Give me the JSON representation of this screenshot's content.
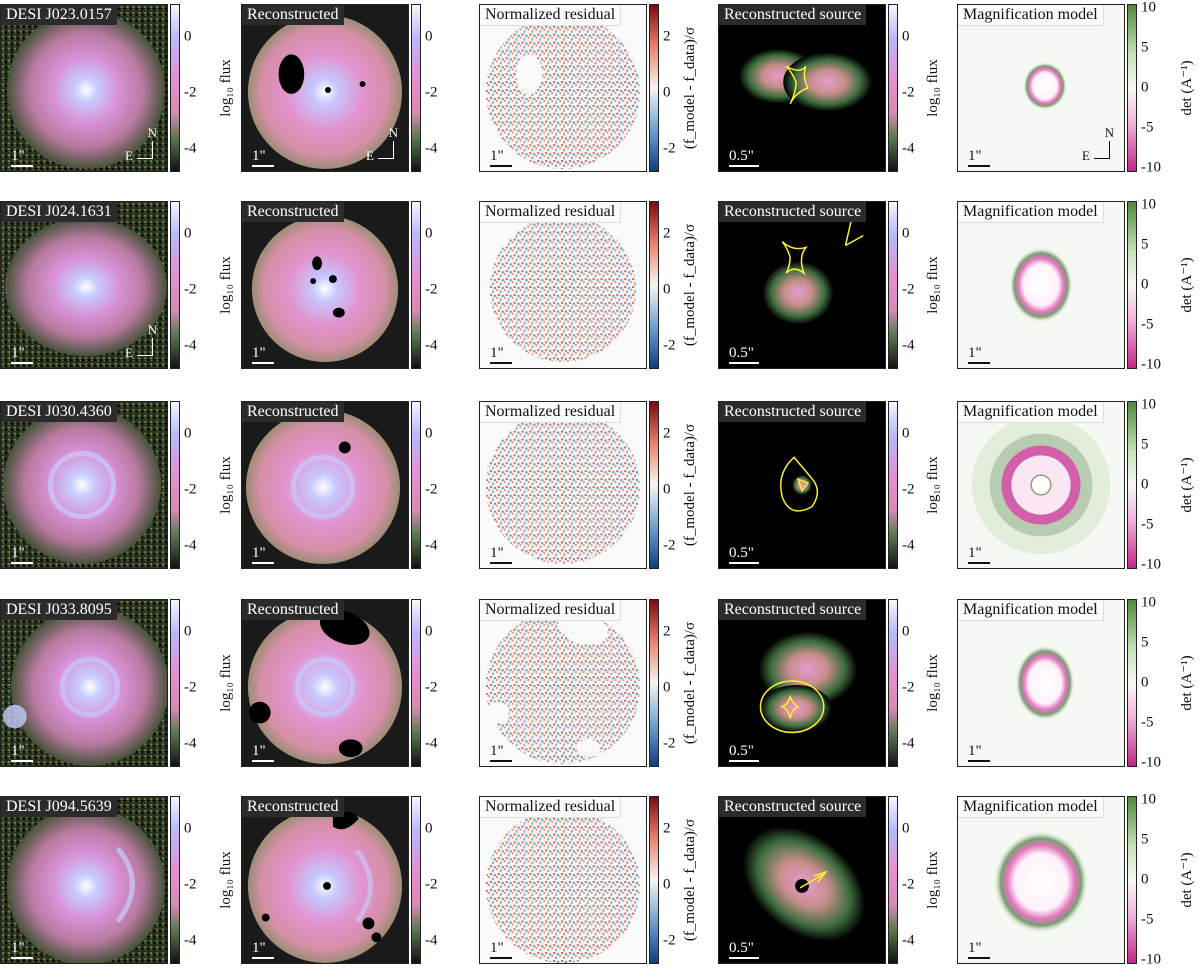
{
  "column_titles": {
    "reconstructed": "Reconstructed",
    "residual": "Normalized residual",
    "source": "Reconstructed source",
    "magnification": "Magnification model"
  },
  "colorbar_labels": {
    "flux": "log₁₀ flux",
    "residual": "(f_model - f_data)/σ",
    "det": "det (A⁻¹)"
  },
  "colorbar_ticks": {
    "flux": [
      "0",
      "-2",
      "-4"
    ],
    "residual": [
      "2",
      "0",
      "-2"
    ],
    "det": [
      "10",
      "5",
      "0",
      "-5",
      "-10"
    ]
  },
  "scale_labels": {
    "image": "1\"",
    "source": "0.5\""
  },
  "compass": {
    "north": "N",
    "east": "E"
  },
  "rows": [
    {
      "name": "DESI J023.0157"
    },
    {
      "name": "DESI J024.1631"
    },
    {
      "name": "DESI J030.4360"
    },
    {
      "name": "DESI J033.8095"
    },
    {
      "name": "DESI J094.5639"
    }
  ],
  "colors": {
    "flux_cmap": [
      "#f5f7ff",
      "#b7b9ff",
      "#e68fd0",
      "#d98ab4",
      "#59784f",
      "#1a1a1a"
    ],
    "residual_cmap": [
      "#7a0a14",
      "#e8836a",
      "#f7f5f3",
      "#6ea3cf",
      "#0c3f7c"
    ],
    "det_cmap": [
      "#4f8a3a",
      "#c7e3b8",
      "#f6f8f4",
      "#f3b8de",
      "#c0268b"
    ],
    "caustic": "#ffee33"
  }
}
